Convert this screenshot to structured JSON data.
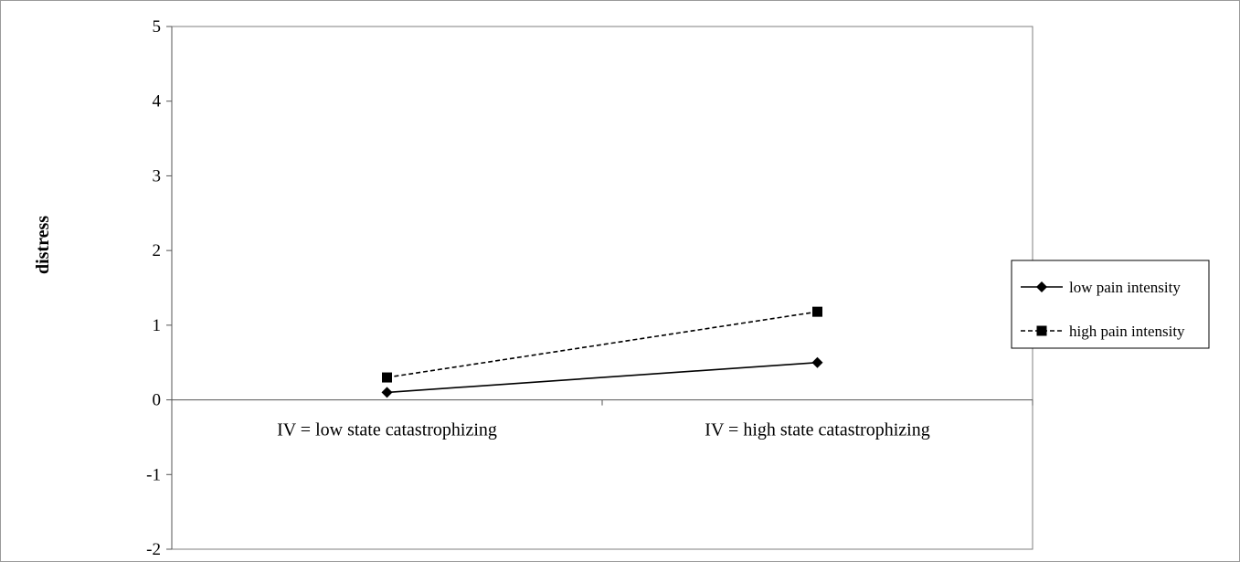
{
  "chart_data": {
    "type": "line",
    "categories": [
      "IV = low state catastrophizing",
      "IV = high  state catastrophizing"
    ],
    "series": [
      {
        "name": "low pain intensity",
        "values": [
          0.1,
          0.5
        ],
        "dash": "solid",
        "marker": "diamond",
        "color": "#000000"
      },
      {
        "name": "high pain  intensity",
        "values": [
          0.3,
          1.18
        ],
        "dash": "dashed",
        "marker": "square",
        "color": "#000000"
      }
    ],
    "ylabel": "distress",
    "ylim": [
      -2,
      5
    ],
    "yticks": [
      -2,
      -1,
      0,
      1,
      2,
      3,
      4,
      5
    ],
    "grid": false,
    "legend_position": "right"
  }
}
